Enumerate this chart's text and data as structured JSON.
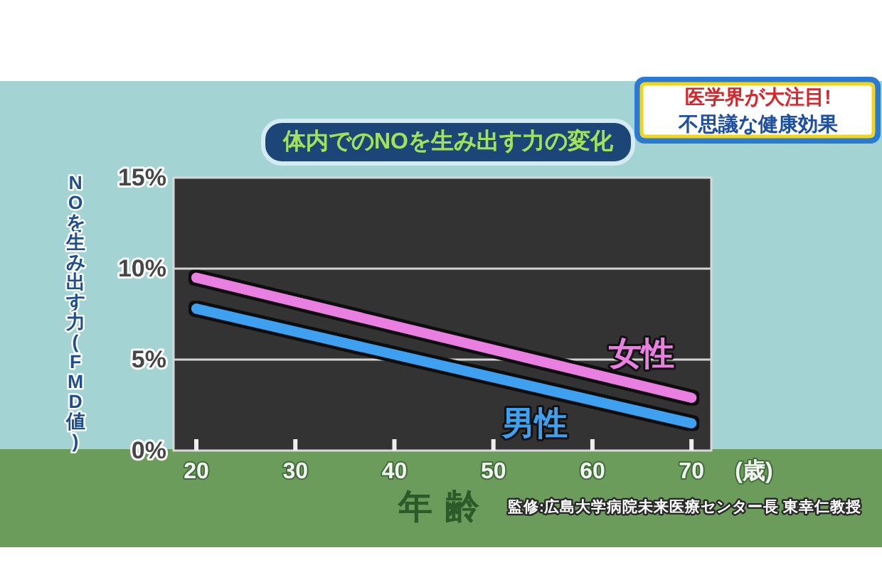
{
  "chart_data": {
    "type": "line",
    "title": "体内でのNOを生み出す力の変化",
    "xlabel": "年齢",
    "ylabel": "NOを生み出す力(FMD値)",
    "x": [
      20,
      70
    ],
    "series": [
      {
        "name": "女性",
        "color": "#e97fe0",
        "values": [
          9.5,
          2.9
        ]
      },
      {
        "name": "男性",
        "color": "#3fa0f0",
        "values": [
          7.8,
          1.5
        ]
      }
    ],
    "xlim": [
      17.7,
      72
    ],
    "xticks": [
      20,
      30,
      40,
      50,
      60,
      70
    ],
    "ylim": [
      0,
      15
    ],
    "yticks": [
      {
        "value": 0,
        "label": "0%"
      },
      {
        "value": 5,
        "label": "5%"
      },
      {
        "value": 10,
        "label": "10%"
      },
      {
        "value": 15,
        "label": "15%"
      }
    ],
    "grid": "y",
    "line_style": "solid",
    "annotations": [
      "(歳)",
      "監修:広島大学病院未来医療センター長 東幸仁教授",
      "医学界が大注目!",
      "不思議な健康効果"
    ]
  }
}
